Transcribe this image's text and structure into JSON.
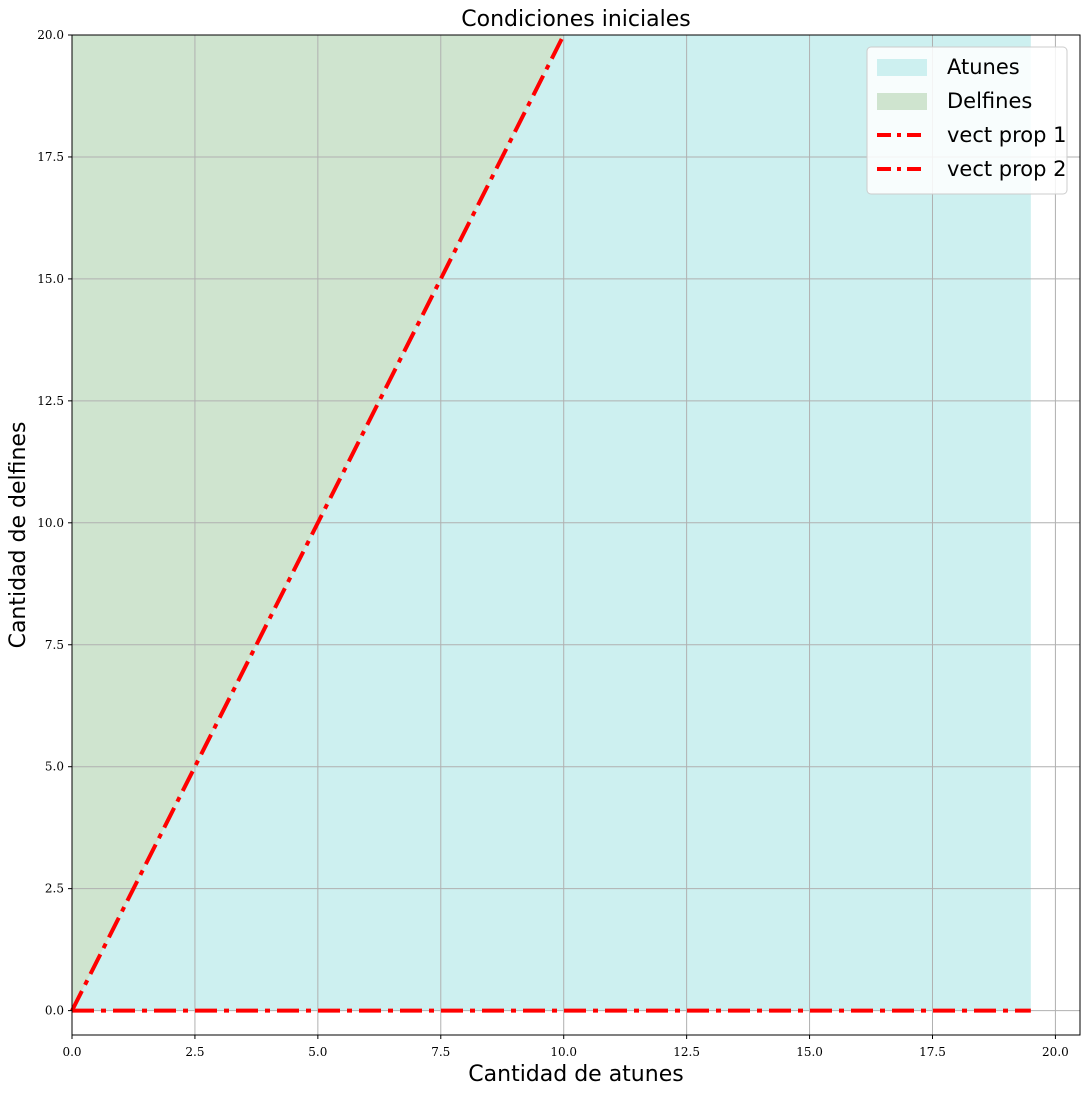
{
  "chart_data": {
    "type": "area",
    "title": "Condiciones iniciales",
    "xlabel": "Cantidad de atunes",
    "ylabel": "Cantidad de delfines",
    "xlim": [
      0,
      20.5
    ],
    "ylim": [
      -0.5,
      20
    ],
    "xticks": [
      0.0,
      2.5,
      5.0,
      7.5,
      10.0,
      12.5,
      15.0,
      17.5,
      20.0
    ],
    "xtick_labels": [
      "0.0",
      "2.5",
      "5.0",
      "7.5",
      "10.0",
      "12.5",
      "15.0",
      "17.5",
      "20.0"
    ],
    "yticks": [
      0.0,
      2.5,
      5.0,
      7.5,
      10.0,
      12.5,
      15.0,
      17.5,
      20.0
    ],
    "ytick_labels": [
      "0.0",
      "2.5",
      "5.0",
      "7.5",
      "10.0",
      "12.5",
      "15.0",
      "17.5",
      "20.0"
    ],
    "grid": true,
    "legend_position": "top-right",
    "regions": [
      {
        "name": "Atunes",
        "color": "#cdf0f0",
        "polygon": [
          [
            0,
            0
          ],
          [
            19.5,
            0
          ],
          [
            19.5,
            20
          ],
          [
            10,
            20
          ]
        ]
      },
      {
        "name": "Delfines",
        "color": "#cfe4cf",
        "polygon": [
          [
            0,
            0
          ],
          [
            10,
            20
          ],
          [
            0,
            20
          ]
        ]
      }
    ],
    "series": [
      {
        "name": "vect prop 1",
        "color": "#ff0000",
        "style": "dashdot",
        "x": [
          0,
          10
        ],
        "y": [
          0,
          20
        ]
      },
      {
        "name": "vect prop 2",
        "color": "#ff0000",
        "style": "dashdot",
        "x": [
          0,
          19.5
        ],
        "y": [
          0,
          0
        ]
      }
    ]
  }
}
